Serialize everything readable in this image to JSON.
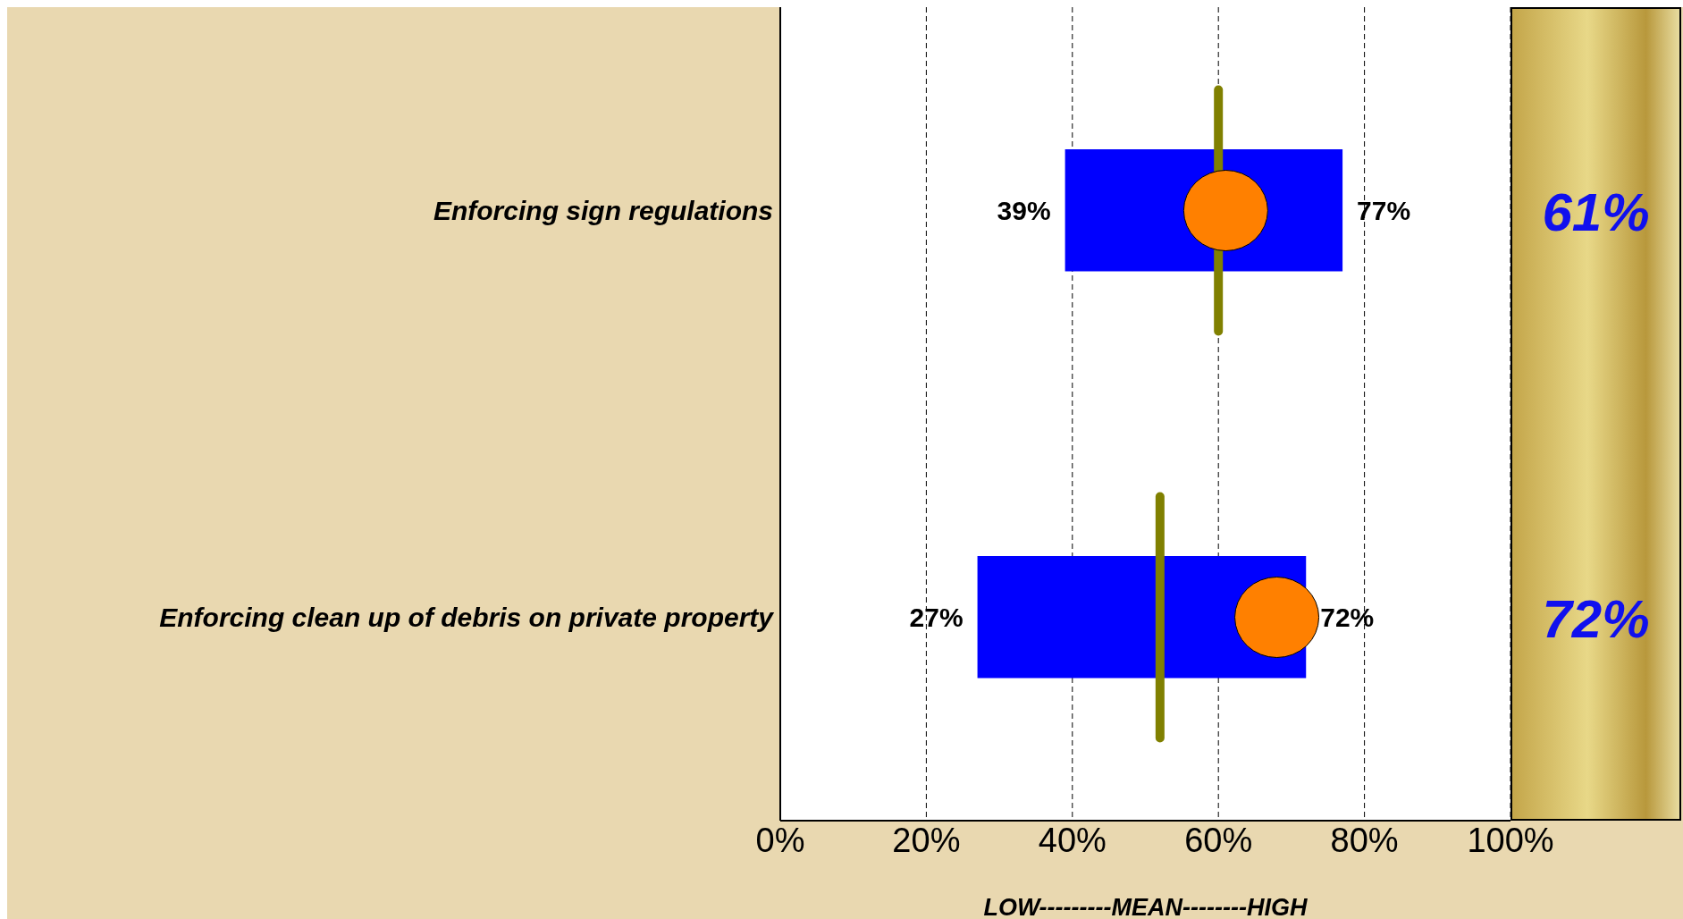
{
  "chart_data": {
    "type": "bar",
    "orientation": "horizontal",
    "categories": [
      "Enforcing sign regulations",
      "Enforcing clean up of debris on private property"
    ],
    "xlabel": "LOW---------MEAN--------HIGH",
    "series": [
      {
        "color": "#0000ff",
        "base": [
          39,
          27
        ],
        "values": [
          38,
          45
        ]
      },
      {
        "type": "scatter",
        "color": "#ff8000",
        "marker": "circle",
        "x": [
          "Enforcing sign regulations",
          "Enforcing clean up of debris on private property"
        ],
        "values": [
          61,
          68
        ]
      }
    ],
    "ref_lines": [
      {
        "axis": "x",
        "value": 60,
        "color": "#808000"
      },
      {
        "axis": "x",
        "value": 52,
        "color": "#808000"
      }
    ],
    "xlim": [
      0,
      100
    ],
    "xticks": [
      {
        "value": 0,
        "label": "0%"
      },
      {
        "value": 20,
        "label": "20%"
      },
      {
        "value": 40,
        "label": "40%"
      },
      {
        "value": 60,
        "label": "60%"
      },
      {
        "value": 80,
        "label": "80%"
      },
      {
        "value": 100,
        "label": "100%"
      }
    ],
    "grid": "x",
    "legend": false,
    "annotations": [
      {
        "text": "39%",
        "x": 39,
        "y": "Enforcing sign regulations"
      },
      {
        "text": "77%",
        "x": 77,
        "y": "Enforcing sign regulations"
      },
      {
        "text": "27%",
        "x": 27,
        "y": "Enforcing clean up of debris on private property"
      },
      {
        "text": "72%",
        "x": 72,
        "y": "Enforcing clean up of debris on private property"
      },
      "61%",
      "72%"
    ]
  }
}
